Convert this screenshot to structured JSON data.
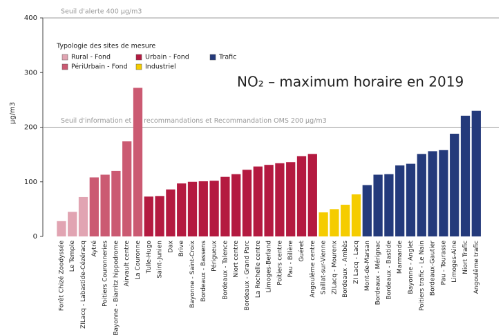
{
  "chart_data": {
    "type": "bar",
    "title": "NO₂ – maximum horaire en 2019",
    "y_label": "µg/m3",
    "legend_title": "Typologie des sites de mesure",
    "ylim": [
      0,
      400
    ],
    "yticks": [
      0,
      100,
      200,
      300,
      400
    ],
    "annotations": [
      {
        "text": "Seuil d'alerte 400 µg/m3",
        "value": 400
      },
      {
        "text": "Seuil d'information et de recommandations et Recommandation OMS 200 µg/m3",
        "value": 200
      }
    ],
    "series": [
      {
        "name": "Rural - Fond",
        "color": "#e1a4b2",
        "categories": [
          "Forêt Chizé Zoodyssée",
          "Le Temple",
          "ZILacq - Labastide-Cézéracq"
        ],
        "values": [
          28,
          45,
          72
        ]
      },
      {
        "name": "PériUrbain - Fond",
        "color": "#cb5a72",
        "categories": [
          "Aytré",
          "Poitiers Couronneries",
          "Bayonne - Biarritz hippodrome",
          "Airvault centre",
          "La Couronne"
        ],
        "values": [
          108,
          113,
          120,
          174,
          272
        ]
      },
      {
        "name": "Urbain - Fond",
        "color": "#b41a40",
        "categories": [
          "Tulle-Hugo",
          "Saint-Junien",
          "Dax",
          "Brive",
          "Bayonne - Saint-Croix",
          "Bordeaux - Bassens",
          "Périgueux",
          "Bordeaux - Talence",
          "Niort centre",
          "Bordeaux - Grand Parc",
          "La Rochelle centre",
          "Limoges-Berland",
          "Poitiers centre",
          "Pau - Billère",
          "Guéret",
          "Angoulême centre"
        ],
        "values": [
          73,
          74,
          86,
          97,
          100,
          101,
          102,
          109,
          114,
          122,
          128,
          131,
          134,
          136,
          147,
          151
        ]
      },
      {
        "name": "Industriel",
        "color": "#f5cc00",
        "categories": [
          "Saillat-sur-Vienne",
          "ZILacq - Mourenx",
          "Bordeaux - Ambès",
          "ZI Lacq - Lacq"
        ],
        "values": [
          44,
          50,
          58,
          77
        ]
      },
      {
        "name": "Trafic",
        "color": "#243a7b",
        "categories": [
          "Mont-de-Marsan",
          "Bordeaux - Mérignac",
          "Bordeaux - Bastide",
          "Marmande",
          "Bayonne - Anglet",
          "Poitiers trafic - Le Nain",
          "Bordeaux-Gautier",
          "Pau - Tourasse",
          "Limoges-Aine",
          "Niort Trafic",
          "Angoulême trafic"
        ],
        "values": [
          94,
          113,
          114,
          130,
          133,
          151,
          156,
          158,
          188,
          221,
          230
        ]
      }
    ]
  }
}
